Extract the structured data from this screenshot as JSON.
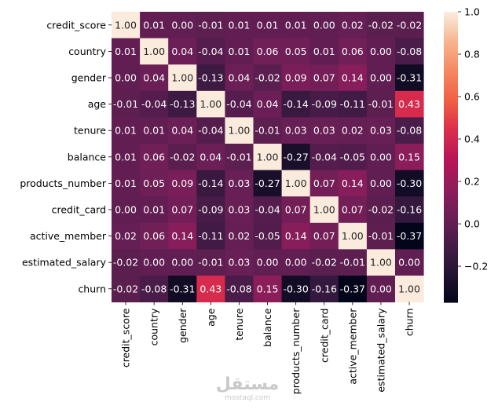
{
  "chart_data": {
    "type": "heatmap",
    "title": "",
    "labels": [
      "credit_score",
      "country",
      "gender",
      "age",
      "tenure",
      "balance",
      "products_number",
      "credit_card",
      "active_member",
      "estimated_salary",
      "churn"
    ],
    "matrix": [
      [
        1.0,
        0.01,
        0.0,
        -0.01,
        0.01,
        0.01,
        0.01,
        -0.0,
        0.02,
        -0.02,
        -0.02
      ],
      [
        0.01,
        1.0,
        0.04,
        -0.04,
        0.01,
        0.06,
        0.05,
        0.01,
        0.06,
        -0.0,
        -0.08
      ],
      [
        0.0,
        0.04,
        1.0,
        -0.13,
        0.04,
        -0.02,
        0.09,
        0.07,
        0.14,
        -0.0,
        -0.31
      ],
      [
        -0.01,
        -0.04,
        -0.13,
        1.0,
        -0.04,
        0.04,
        -0.14,
        -0.09,
        -0.11,
        -0.01,
        0.43
      ],
      [
        0.01,
        0.01,
        0.04,
        -0.04,
        1.0,
        -0.01,
        0.03,
        0.03,
        0.02,
        0.03,
        -0.08
      ],
      [
        0.01,
        0.06,
        -0.02,
        0.04,
        -0.01,
        1.0,
        -0.27,
        -0.04,
        -0.05,
        0.0,
        0.15
      ],
      [
        0.01,
        0.05,
        0.09,
        -0.14,
        0.03,
        -0.27,
        1.0,
        0.07,
        0.14,
        0.0,
        -0.3
      ],
      [
        -0.0,
        0.01,
        0.07,
        -0.09,
        0.03,
        -0.04,
        0.07,
        1.0,
        0.07,
        -0.02,
        -0.16
      ],
      [
        0.02,
        0.06,
        0.14,
        -0.11,
        0.02,
        -0.05,
        0.14,
        0.07,
        1.0,
        -0.01,
        -0.37
      ],
      [
        -0.02,
        -0.0,
        -0.0,
        -0.01,
        0.03,
        0.0,
        0.0,
        -0.02,
        -0.01,
        1.0,
        -0.0
      ],
      [
        -0.02,
        -0.08,
        -0.31,
        0.43,
        -0.08,
        0.15,
        -0.3,
        -0.16,
        -0.37,
        -0.0,
        1.0
      ]
    ],
    "annotation_format": "0.00",
    "colormap": "rocket",
    "vmin": -0.37,
    "vmax": 1.0,
    "colorbar_ticks": [
      1.0,
      0.8,
      0.6,
      0.4,
      0.2,
      0.0,
      -0.2
    ],
    "colorbar_tick_labels": [
      "1.0",
      "0.8",
      "0.6",
      "0.4",
      "0.2",
      "0.0",
      "−0.2"
    ]
  },
  "watermark": {
    "arabic": "مستقل",
    "latin": "mostaql.com"
  }
}
